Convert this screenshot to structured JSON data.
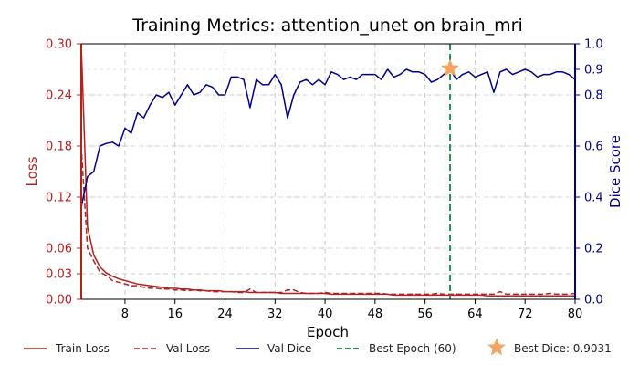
{
  "chart_data": {
    "type": "line",
    "title": "Training Metrics: attention_unet on brain_mri",
    "xlabel": "Epoch",
    "ylabel_left": "Loss",
    "ylabel_right": "Dice Score",
    "xlim": [
      1,
      80
    ],
    "ylim_left": [
      0,
      0.3
    ],
    "ylim_right": [
      0,
      1.0
    ],
    "x_ticks": [
      8,
      16,
      24,
      32,
      40,
      48,
      56,
      64,
      72,
      80
    ],
    "y_left_ticks": [
      0.0,
      0.03,
      0.06,
      0.12,
      0.18,
      0.24,
      0.3
    ],
    "y_left_tick_labels": [
      "0.00",
      "0.03",
      "0.06",
      "0.12",
      "0.18",
      "0.24",
      "0.30"
    ],
    "y_right_ticks": [
      0.0,
      0.2,
      0.4,
      0.6,
      0.8,
      0.9,
      1.0
    ],
    "y_right_tick_labels": [
      "0.0",
      "0.2",
      "0.4",
      "0.6",
      "0.8",
      "0.9",
      "1.0"
    ],
    "grid": true,
    "legend_position": "bottom",
    "colors": {
      "train_loss": "#b22222",
      "val_loss": "#b22222",
      "val_dice": "#00008b",
      "best_epoch": "#2e8b57",
      "best_dice": "#f4a460",
      "left_axis": "#b22222",
      "right_axis": "#00008b"
    },
    "epochs": [
      1,
      2,
      3,
      4,
      5,
      6,
      7,
      8,
      9,
      10,
      11,
      12,
      13,
      14,
      15,
      16,
      17,
      18,
      19,
      20,
      21,
      22,
      23,
      24,
      25,
      26,
      27,
      28,
      29,
      30,
      31,
      32,
      33,
      34,
      35,
      36,
      37,
      38,
      39,
      40,
      41,
      42,
      43,
      44,
      45,
      46,
      47,
      48,
      49,
      50,
      51,
      52,
      53,
      54,
      55,
      56,
      57,
      58,
      59,
      60,
      61,
      62,
      63,
      64,
      65,
      66,
      67,
      68,
      69,
      70,
      71,
      72,
      73,
      74,
      75,
      76,
      77,
      78,
      79,
      80
    ],
    "series": [
      {
        "name": "Train Loss",
        "axis": "left",
        "style": "solid",
        "values": [
          0.3,
          0.085,
          0.052,
          0.038,
          0.031,
          0.027,
          0.024,
          0.022,
          0.02,
          0.018,
          0.017,
          0.016,
          0.015,
          0.014,
          0.013,
          0.013,
          0.012,
          0.012,
          0.011,
          0.011,
          0.01,
          0.01,
          0.01,
          0.009,
          0.009,
          0.009,
          0.009,
          0.008,
          0.008,
          0.008,
          0.008,
          0.008,
          0.007,
          0.007,
          0.007,
          0.007,
          0.007,
          0.007,
          0.007,
          0.007,
          0.006,
          0.006,
          0.006,
          0.006,
          0.006,
          0.006,
          0.006,
          0.006,
          0.006,
          0.006,
          0.005,
          0.005,
          0.005,
          0.005,
          0.005,
          0.005,
          0.005,
          0.005,
          0.005,
          0.005,
          0.005,
          0.005,
          0.005,
          0.005,
          0.005,
          0.004,
          0.004,
          0.004,
          0.004,
          0.004,
          0.004,
          0.004,
          0.004,
          0.004,
          0.004,
          0.004,
          0.004,
          0.004,
          0.004,
          0.004
        ]
      },
      {
        "name": "Val Loss",
        "axis": "left",
        "style": "dashed",
        "values": [
          0.18,
          0.06,
          0.045,
          0.032,
          0.028,
          0.022,
          0.02,
          0.018,
          0.016,
          0.016,
          0.014,
          0.013,
          0.013,
          0.012,
          0.012,
          0.011,
          0.011,
          0.01,
          0.011,
          0.01,
          0.01,
          0.009,
          0.009,
          0.009,
          0.009,
          0.008,
          0.008,
          0.012,
          0.008,
          0.008,
          0.008,
          0.008,
          0.008,
          0.011,
          0.011,
          0.008,
          0.007,
          0.007,
          0.007,
          0.008,
          0.007,
          0.007,
          0.007,
          0.007,
          0.007,
          0.007,
          0.007,
          0.007,
          0.007,
          0.006,
          0.006,
          0.006,
          0.006,
          0.006,
          0.006,
          0.006,
          0.006,
          0.007,
          0.006,
          0.006,
          0.006,
          0.006,
          0.006,
          0.006,
          0.006,
          0.006,
          0.006,
          0.009,
          0.006,
          0.006,
          0.006,
          0.006,
          0.006,
          0.006,
          0.006,
          0.007,
          0.006,
          0.006,
          0.006,
          0.007
        ]
      },
      {
        "name": "Val Dice",
        "axis": "right",
        "style": "solid",
        "values": [
          0.36,
          0.48,
          0.5,
          0.6,
          0.61,
          0.615,
          0.6,
          0.67,
          0.65,
          0.73,
          0.71,
          0.76,
          0.8,
          0.79,
          0.81,
          0.76,
          0.8,
          0.84,
          0.8,
          0.81,
          0.84,
          0.83,
          0.8,
          0.8,
          0.87,
          0.87,
          0.86,
          0.75,
          0.86,
          0.84,
          0.84,
          0.88,
          0.84,
          0.71,
          0.8,
          0.85,
          0.86,
          0.84,
          0.86,
          0.84,
          0.89,
          0.88,
          0.86,
          0.87,
          0.86,
          0.88,
          0.88,
          0.88,
          0.86,
          0.9,
          0.87,
          0.88,
          0.9,
          0.89,
          0.89,
          0.88,
          0.85,
          0.86,
          0.88,
          0.9,
          0.86,
          0.88,
          0.89,
          0.87,
          0.88,
          0.89,
          0.81,
          0.89,
          0.9,
          0.88,
          0.89,
          0.9,
          0.89,
          0.87,
          0.88,
          0.88,
          0.89,
          0.89,
          0.88,
          0.86
        ]
      }
    ],
    "best_epoch": 60,
    "best_dice": 0.9031,
    "legend": [
      {
        "label": "Train Loss",
        "kind": "solid",
        "color": "#b22222"
      },
      {
        "label": "Val Loss",
        "kind": "dashed",
        "color": "#b22222"
      },
      {
        "label": "Val Dice",
        "kind": "solid",
        "color": "#00008b"
      },
      {
        "label": "Best Epoch (60)",
        "kind": "dashed",
        "color": "#2e8b57"
      },
      {
        "label": "Best Dice: 0.9031",
        "kind": "star",
        "color": "#f4a460"
      }
    ]
  }
}
